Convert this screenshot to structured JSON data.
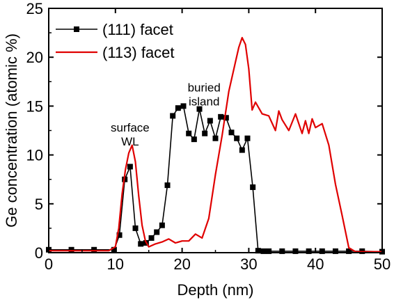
{
  "chart_data": {
    "type": "line",
    "xlabel": "Depth (nm)",
    "ylabel": "Ge concentration (atomic %)",
    "xlim": [
      0,
      50
    ],
    "ylim": [
      0,
      25
    ],
    "xticks": [
      "0",
      "10",
      "20",
      "30",
      "40",
      "50"
    ],
    "yticks": [
      "0",
      "5",
      "10",
      "15",
      "20",
      "25"
    ],
    "grid": false,
    "legend_position": "top-left",
    "annotations": [
      {
        "lines": [
          "surface",
          "WL"
        ],
        "x": 12.2,
        "y": 12.4
      },
      {
        "lines": [
          "buried",
          "island"
        ],
        "x": 23.3,
        "y": 16.5
      }
    ],
    "series": [
      {
        "name": "(111) facet",
        "color": "#000000",
        "marker": "square",
        "x": [
          0,
          3.4,
          6.8,
          9.8,
          10.6,
          11.4,
          12.2,
          13,
          13.8,
          14.6,
          15.4,
          16.2,
          17,
          17.8,
          18.6,
          19.4,
          20.2,
          21,
          21.8,
          22.6,
          23.4,
          24.2,
          25,
          25.8,
          26.6,
          27.4,
          28.2,
          29,
          29.8,
          30.6,
          31.4,
          32.2,
          33,
          35,
          37,
          39,
          41,
          43,
          45,
          47,
          50
        ],
        "y": [
          0.3,
          0.3,
          0.3,
          0.3,
          1.8,
          7.5,
          8.8,
          2.5,
          0.9,
          1.0,
          1.5,
          2.1,
          2.8,
          6.9,
          14.0,
          14.8,
          15.0,
          12.2,
          11.6,
          14.7,
          12.2,
          13.5,
          11.7,
          13.9,
          13.8,
          12.3,
          11.7,
          10.5,
          11.7,
          6.7,
          0.2,
          0.15,
          0.15,
          0.15,
          0.15,
          0.15,
          0.15,
          0.15,
          0.15,
          0.15,
          0.1
        ]
      },
      {
        "name": "(113) facet",
        "color": "#e00000",
        "marker": "none",
        "x": [
          0,
          9,
          10,
          10.5,
          11,
          11.5,
          12,
          12.5,
          13,
          13.5,
          14,
          14.5,
          15,
          16,
          17,
          18,
          19,
          20,
          21,
          22,
          23,
          24,
          25,
          26,
          27,
          28,
          28.5,
          29,
          29.5,
          30,
          30.5,
          31,
          32,
          33,
          34,
          34.5,
          35,
          36,
          37,
          38,
          38.5,
          39,
          39.5,
          40,
          41,
          42,
          43,
          44,
          45,
          46,
          50
        ],
        "y": [
          0.2,
          0.2,
          0.6,
          2.5,
          6.0,
          8.5,
          10.2,
          11.0,
          9.3,
          5.8,
          2.8,
          1.2,
          0.6,
          0.9,
          1.1,
          1.4,
          1.0,
          1.2,
          1.2,
          1.9,
          1.5,
          3.5,
          8.0,
          12.0,
          16.5,
          19.5,
          21.0,
          22.0,
          21.3,
          18.8,
          14.6,
          15.4,
          14.2,
          14.0,
          12.5,
          14.5,
          13.6,
          12.5,
          14.2,
          12.2,
          13.5,
          12.2,
          13.7,
          12.8,
          13.2,
          11.0,
          7.0,
          3.8,
          0.5,
          0.1,
          0.1
        ]
      }
    ]
  }
}
